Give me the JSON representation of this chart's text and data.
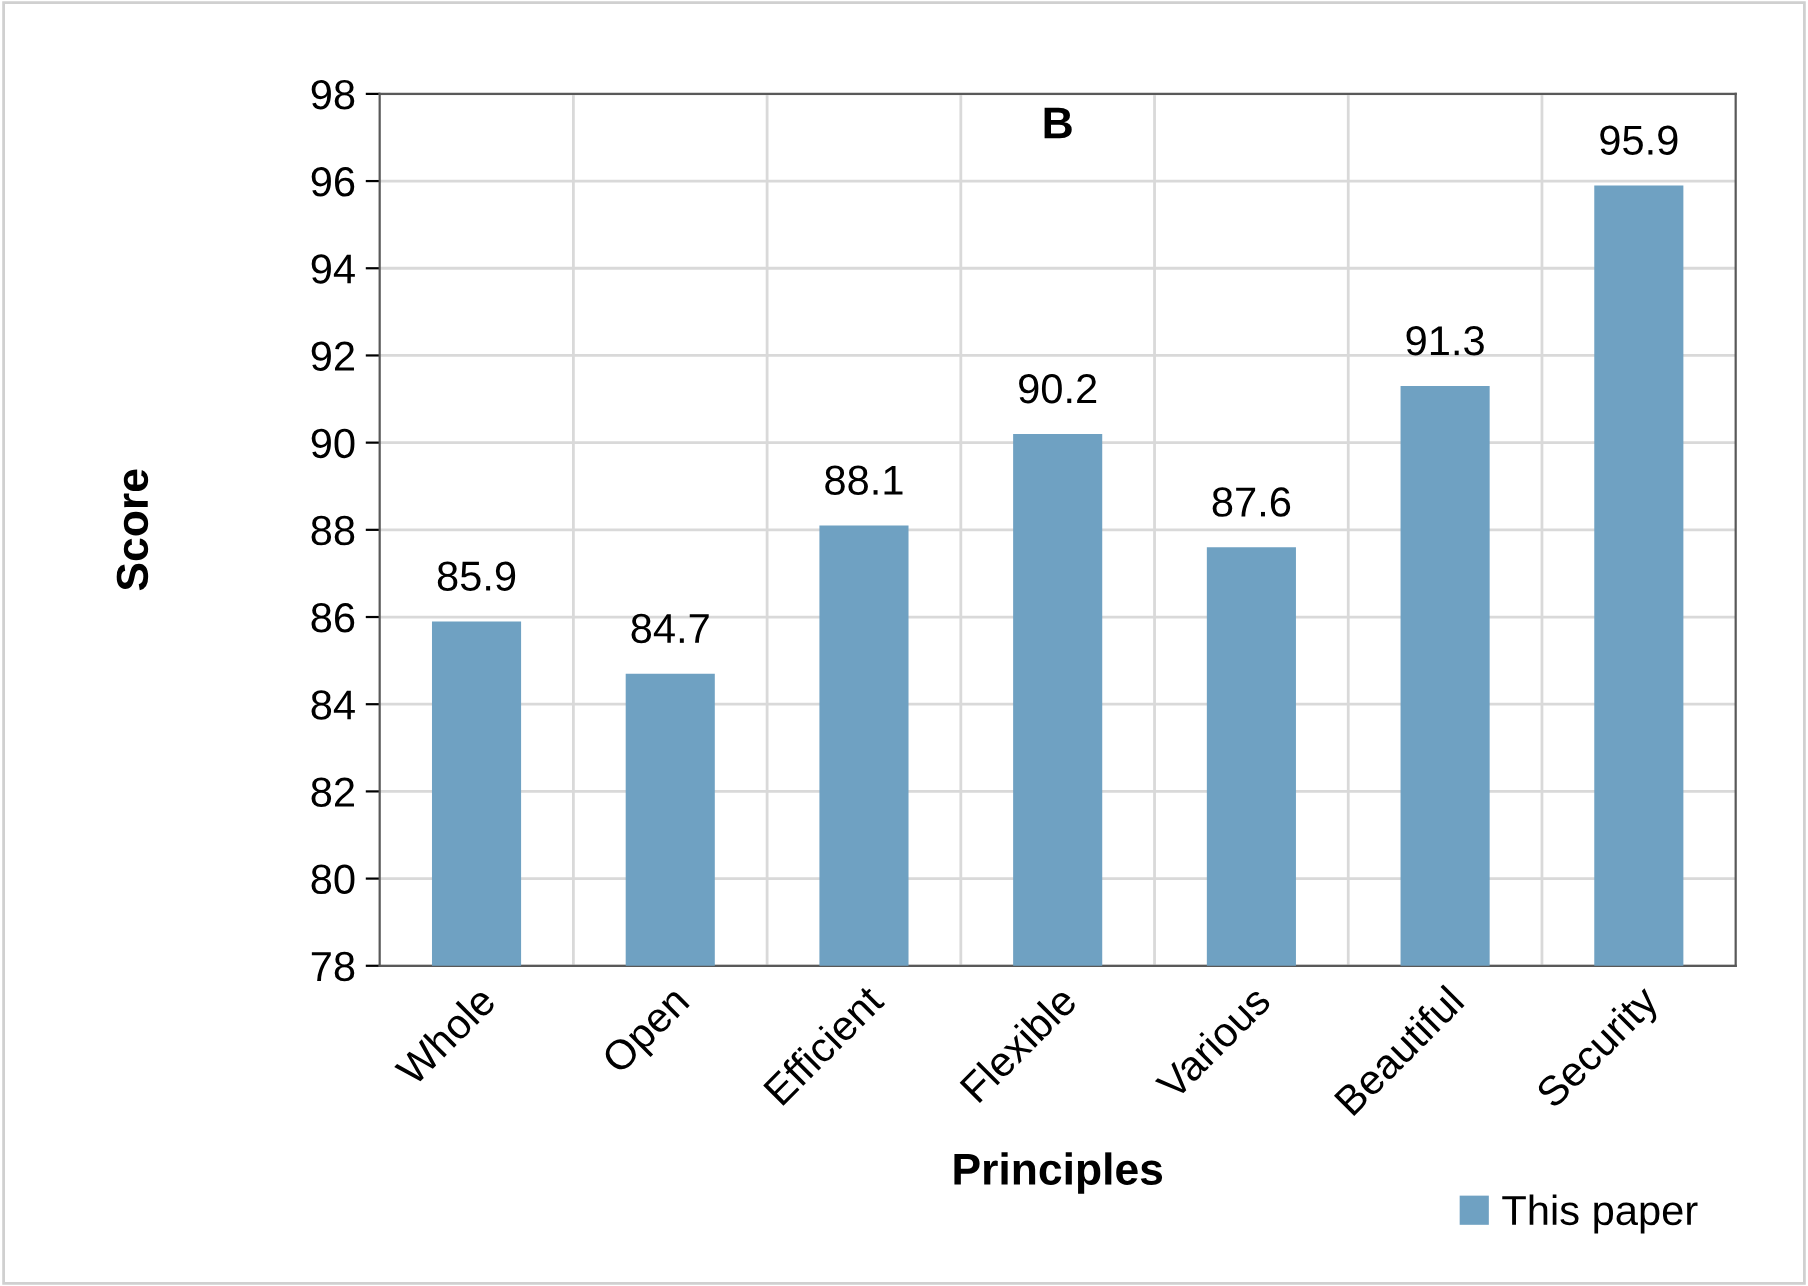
{
  "chart_data": {
    "type": "bar",
    "title": "B",
    "xlabel": "Principles",
    "ylabel": "Score",
    "categories": [
      "Whole",
      "Open",
      "Efficient",
      "Flexible",
      "Various",
      "Beautiful",
      "Security"
    ],
    "series": [
      {
        "name": "This paper",
        "color": "#6fa1c2",
        "values": [
          85.9,
          84.7,
          88.1,
          90.2,
          87.6,
          91.3,
          95.9
        ]
      }
    ],
    "ylim": [
      78,
      98
    ],
    "yticks": [
      78,
      80,
      82,
      84,
      86,
      88,
      90,
      92,
      94,
      96,
      98
    ],
    "grid": true,
    "legend": "bottom right",
    "data_labels": true
  }
}
